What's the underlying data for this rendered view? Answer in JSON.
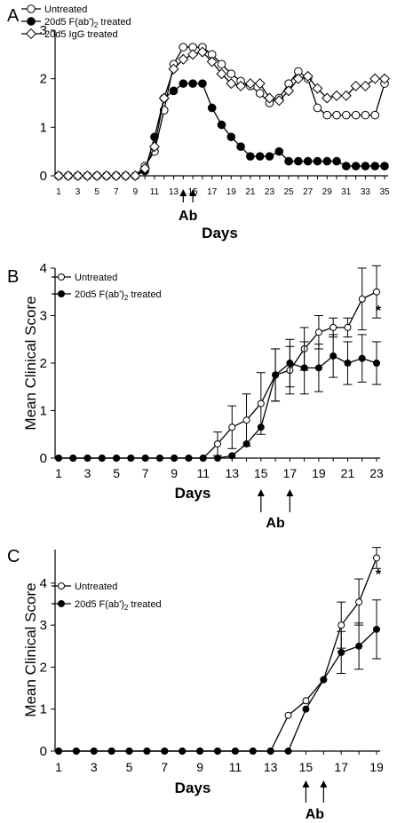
{
  "chart_data": [
    {
      "panel": "A",
      "type": "line",
      "ylabel": "",
      "xlabel": "Days",
      "xlim": [
        1,
        35
      ],
      "ylim": [
        0,
        3
      ],
      "y_ticks": [
        0,
        1,
        2,
        3
      ],
      "x_ticks": [
        1,
        3,
        5,
        7,
        9,
        11,
        13,
        15,
        17,
        19,
        21,
        23,
        25,
        27,
        29,
        31,
        33,
        35
      ],
      "legend": "top-left",
      "annotation_label": "Ab",
      "arrow_days": [
        14,
        15
      ],
      "series": [
        {
          "name": "Untreated",
          "marker": "open-circle",
          "x": [
            1,
            2,
            3,
            4,
            5,
            6,
            7,
            8,
            9,
            10,
            11,
            12,
            13,
            14,
            15,
            16,
            17,
            18,
            19,
            20,
            21,
            22,
            23,
            24,
            25,
            26,
            27,
            28,
            29,
            30,
            31,
            32,
            33,
            34,
            35
          ],
          "y": [
            0,
            0,
            0,
            0,
            0,
            0,
            0,
            0,
            0,
            0.2,
            0.5,
            1.35,
            2.3,
            2.65,
            2.65,
            2.65,
            2.5,
            2.3,
            2.1,
            1.95,
            1.85,
            1.7,
            1.5,
            1.6,
            1.9,
            2.15,
            2.0,
            1.4,
            1.25,
            1.25,
            1.25,
            1.25,
            1.25,
            1.25,
            1.9
          ]
        },
        {
          "name": "20d5 F(ab')2 treated",
          "marker": "filled-circle",
          "x": [
            1,
            2,
            3,
            4,
            5,
            6,
            7,
            8,
            9,
            10,
            11,
            12,
            13,
            14,
            15,
            16,
            17,
            18,
            19,
            20,
            21,
            22,
            23,
            24,
            25,
            26,
            27,
            28,
            29,
            30,
            31,
            32,
            33,
            34,
            35
          ],
          "y": [
            0,
            0,
            0,
            0,
            0,
            0,
            0,
            0,
            0,
            0.1,
            0.8,
            1.6,
            1.75,
            1.9,
            1.9,
            1.9,
            1.4,
            1.05,
            0.8,
            0.6,
            0.4,
            0.4,
            0.4,
            0.5,
            0.3,
            0.3,
            0.3,
            0.3,
            0.3,
            0.3,
            0.2,
            0.2,
            0.2,
            0.2,
            0.2
          ]
        },
        {
          "name": "20d5 IgG treated",
          "marker": "open-diamond",
          "x": [
            1,
            2,
            3,
            4,
            5,
            6,
            7,
            8,
            9,
            10,
            11,
            12,
            13,
            14,
            15,
            16,
            17,
            18,
            19,
            20,
            21,
            22,
            23,
            24,
            25,
            26,
            27,
            28,
            29,
            30,
            31,
            32,
            33,
            34,
            35
          ],
          "y": [
            0,
            0,
            0,
            0,
            0,
            0,
            0,
            0,
            0,
            0.15,
            0.6,
            1.6,
            2.2,
            2.4,
            2.5,
            2.55,
            2.35,
            2.1,
            1.9,
            1.85,
            1.9,
            1.9,
            1.6,
            1.55,
            1.75,
            2.0,
            2.05,
            1.8,
            1.6,
            1.65,
            1.65,
            1.85,
            1.85,
            2.0,
            2.0
          ]
        }
      ]
    },
    {
      "panel": "B",
      "type": "line",
      "ylabel": "Mean Clinical Score",
      "xlabel": "Days",
      "xlim": [
        1,
        23
      ],
      "ylim": [
        0,
        4
      ],
      "y_ticks": [
        0,
        1,
        2,
        3,
        4
      ],
      "x_ticks": [
        1,
        3,
        5,
        7,
        9,
        11,
        13,
        15,
        17,
        19,
        21,
        23
      ],
      "legend": "top-left",
      "annotation_label": "Ab",
      "arrow_days": [
        15,
        17
      ],
      "star_label": "*",
      "series": [
        {
          "name": "Untreated",
          "marker": "open-circle",
          "x": [
            1,
            2,
            3,
            4,
            5,
            6,
            7,
            8,
            9,
            10,
            11,
            12,
            13,
            14,
            15,
            16,
            17,
            18,
            19,
            20,
            21,
            22,
            23
          ],
          "y": [
            0,
            0,
            0,
            0,
            0,
            0,
            0,
            0,
            0,
            0,
            0,
            0.3,
            0.65,
            0.8,
            1.15,
            1.75,
            1.85,
            2.3,
            2.65,
            2.75,
            2.75,
            3.35,
            3.5
          ],
          "error": [
            0,
            0,
            0,
            0,
            0,
            0,
            0,
            0,
            0,
            0,
            0,
            0.25,
            0.45,
            0.55,
            0.65,
            0.55,
            0.5,
            0.45,
            0.35,
            0.2,
            0.2,
            0.65,
            0.55
          ]
        },
        {
          "name": "20d5 F(ab')2 treated",
          "marker": "filled-circle",
          "x": [
            1,
            2,
            3,
            4,
            5,
            6,
            7,
            8,
            9,
            10,
            11,
            12,
            13,
            14,
            15,
            16,
            17,
            18,
            19,
            20,
            21,
            22,
            23
          ],
          "y": [
            0,
            0,
            0,
            0,
            0,
            0,
            0,
            0,
            0,
            0,
            0,
            0,
            0.05,
            0.3,
            0.65,
            1.75,
            2.0,
            1.9,
            1.9,
            2.15,
            2.0,
            2.1,
            2.0
          ],
          "error": [
            0,
            0,
            0,
            0,
            0,
            0,
            0,
            0,
            0,
            0,
            0,
            0,
            0,
            0,
            0,
            0.55,
            0.5,
            0.55,
            0.5,
            0.45,
            0.45,
            0.5,
            0.45
          ]
        }
      ]
    },
    {
      "panel": "C",
      "type": "line",
      "ylabel": "Mean Clinical Score",
      "xlabel": "Days",
      "xlim": [
        1,
        19
      ],
      "ylim": [
        0,
        4.8
      ],
      "y_ticks": [
        0,
        1,
        2,
        3,
        4
      ],
      "x_ticks": [
        1,
        3,
        5,
        7,
        9,
        11,
        13,
        15,
        17,
        19
      ],
      "legend": "top-left",
      "annotation_label": "Ab",
      "arrow_days": [
        15,
        16
      ],
      "star_label": "*",
      "series": [
        {
          "name": "Untreated",
          "marker": "open-circle",
          "x": [
            1,
            2,
            3,
            4,
            5,
            6,
            7,
            8,
            9,
            10,
            11,
            12,
            13,
            14,
            15,
            16,
            17,
            18,
            19
          ],
          "y": [
            0,
            0,
            0,
            0,
            0,
            0,
            0,
            0,
            0,
            0,
            0,
            0,
            0,
            0.85,
            1.2,
            1.7,
            3.0,
            3.55,
            4.6
          ],
          "error": [
            0,
            0,
            0,
            0,
            0,
            0,
            0,
            0,
            0,
            0,
            0,
            0,
            0,
            0,
            0,
            0,
            0.55,
            0.55,
            0.25
          ]
        },
        {
          "name": "20d5 F(ab')2 treated",
          "marker": "filled-circle",
          "x": [
            1,
            2,
            3,
            4,
            5,
            6,
            7,
            8,
            9,
            10,
            11,
            12,
            13,
            14,
            15,
            16,
            17,
            18,
            19
          ],
          "y": [
            0,
            0,
            0,
            0,
            0,
            0,
            0,
            0,
            0,
            0,
            0,
            0,
            0,
            0,
            1.0,
            1.7,
            2.35,
            2.5,
            2.9
          ],
          "error": [
            0,
            0,
            0,
            0,
            0,
            0,
            0,
            0,
            0,
            0,
            0,
            0,
            0,
            0,
            0,
            0,
            0.5,
            0.55,
            0.7
          ]
        }
      ]
    }
  ]
}
